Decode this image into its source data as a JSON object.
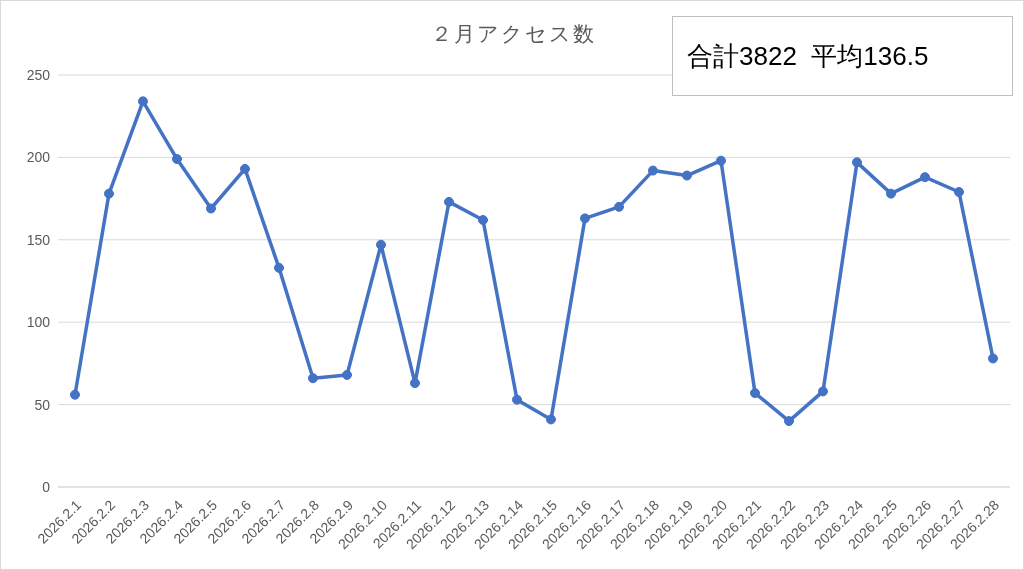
{
  "chart_data": {
    "type": "line",
    "title": "２月アクセス数",
    "annotations": [
      "合計3822  平均136.5"
    ],
    "categories": [
      "2026.2.1",
      "2026.2.2",
      "2026.2.3",
      "2026.2.4",
      "2026.2.5",
      "2026.2.6",
      "2026.2.7",
      "2026.2.8",
      "2026.2.9",
      "2026.2.10",
      "2026.2.11",
      "2026.2.12",
      "2026.2.13",
      "2026.2.14",
      "2026.2.15",
      "2026.2.16",
      "2026.2.17",
      "2026.2.18",
      "2026.2.19",
      "2026.2.20",
      "2026.2.21",
      "2026.2.22",
      "2026.2.23",
      "2026.2.24",
      "2026.2.25",
      "2026.2.26",
      "2026.2.27",
      "2026.2.28"
    ],
    "values": [
      56,
      178,
      234,
      199,
      169,
      193,
      133,
      66,
      68,
      147,
      63,
      173,
      162,
      53,
      41,
      163,
      170,
      192,
      189,
      198,
      57,
      40,
      58,
      197,
      178,
      188,
      179,
      78
    ],
    "color": "#4472c4",
    "ylim": [
      0,
      250
    ],
    "yticks": [
      0,
      50,
      100,
      150,
      200,
      250
    ],
    "grid": "y",
    "marker": "circle",
    "line_style": "solid"
  }
}
